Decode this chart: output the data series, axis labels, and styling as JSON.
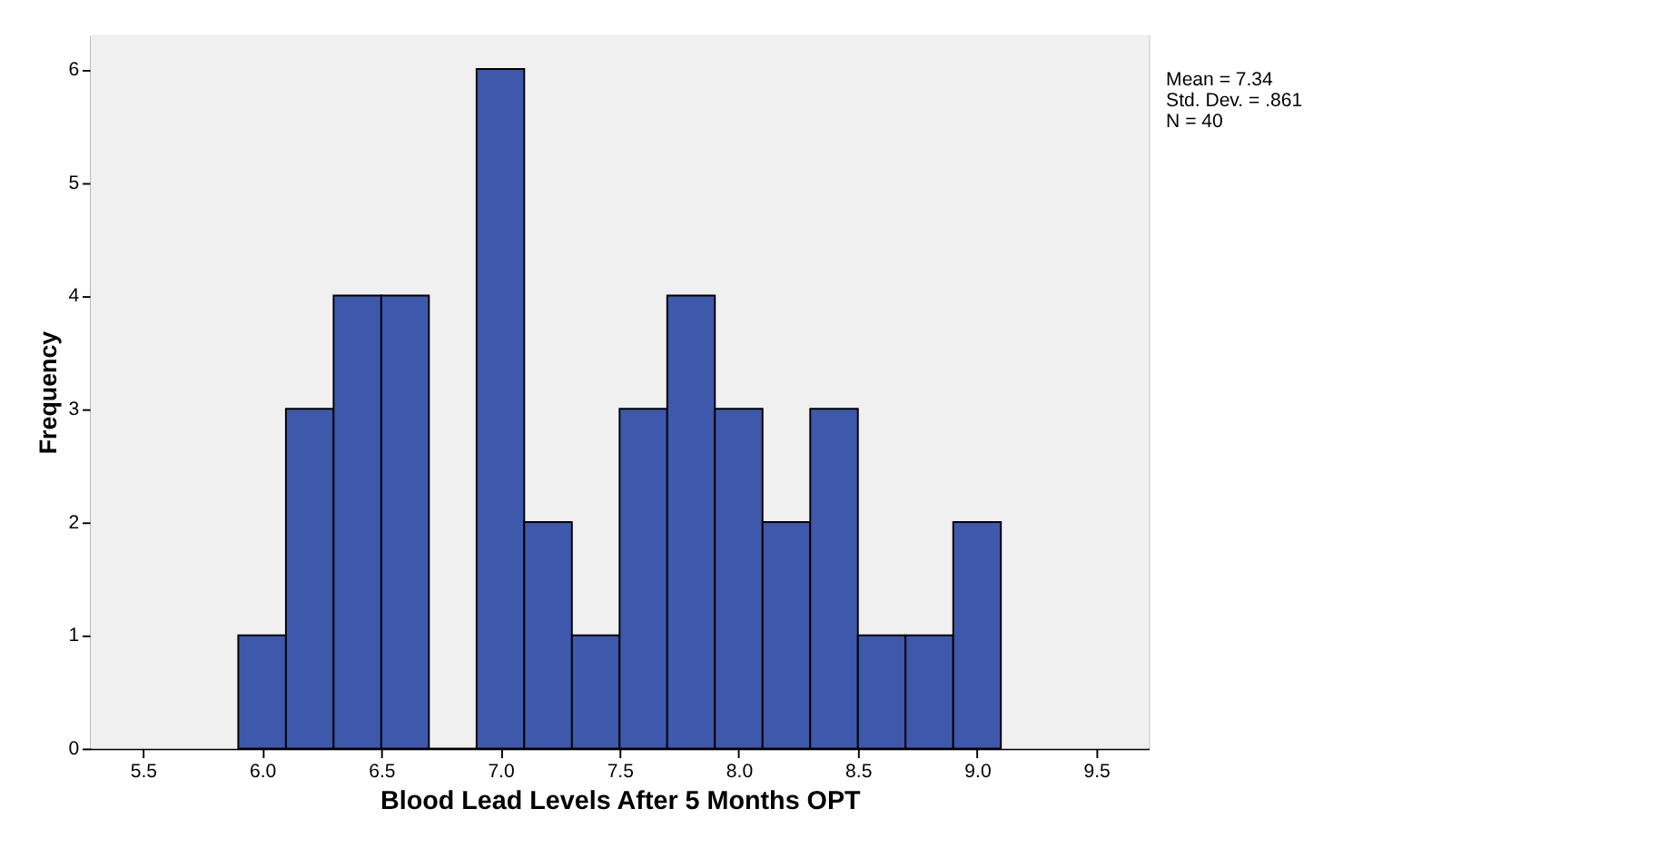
{
  "chart_data": {
    "type": "histogram",
    "xlabel": "Blood Lead Levels After 5 Months OPT",
    "ylabel": "Frequency",
    "bins": [
      5.9,
      6.1,
      6.3,
      6.5,
      6.7,
      6.9,
      7.1,
      7.3,
      7.5,
      7.7,
      7.9,
      8.1,
      8.3,
      8.5,
      8.7,
      8.9,
      9.1
    ],
    "values": [
      1,
      3,
      4,
      4,
      0,
      6,
      2,
      1,
      3,
      4,
      3,
      2,
      3,
      1,
      1,
      2
    ],
    "color": "#3e58ac",
    "xlim": [
      5.28,
      9.72
    ],
    "xticks": [
      {
        "value": 5.5,
        "label": "5.5"
      },
      {
        "value": 6,
        "label": "6.0"
      },
      {
        "value": 6.5,
        "label": "6.5"
      },
      {
        "value": 7,
        "label": "7.0"
      },
      {
        "value": 7.5,
        "label": "7.5"
      },
      {
        "value": 8,
        "label": "8.0"
      },
      {
        "value": 8.5,
        "label": "8.5"
      },
      {
        "value": 9,
        "label": "9.0"
      },
      {
        "value": 9.5,
        "label": "9.5"
      }
    ],
    "ylim": [
      0,
      6.3
    ],
    "yticks": [
      0,
      1,
      2,
      3,
      4,
      5,
      6
    ],
    "annotations": [
      "Mean = 7.34",
      "Std. Dev. = .861",
      "N = 40"
    ]
  }
}
